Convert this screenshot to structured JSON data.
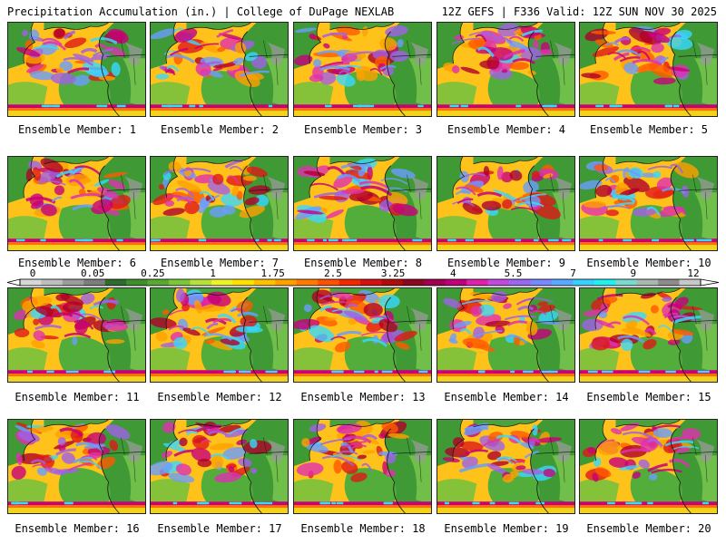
{
  "header": {
    "title": "Precipitation Accumulation (in.) | College of DuPage NEXLAB",
    "valid": "12Z GEFS | F336 Valid: 12Z SUN NOV 30 2025"
  },
  "legend": {
    "ticks": [
      "0",
      "0.05",
      "0.25",
      "1",
      "1.75",
      "2.5",
      "3.25",
      "4",
      "5.5",
      "7",
      "9",
      "12"
    ],
    "colors": [
      "#d7d7d7",
      "#bdbdbd",
      "#9c9c9c",
      "#7d7d7d",
      "#2e6b2e",
      "#3e8e2a",
      "#58a832",
      "#7cc63a",
      "#b7e03c",
      "#eef228",
      "#ffe000",
      "#ffc000",
      "#ffa000",
      "#ff7a00",
      "#ff5200",
      "#f32800",
      "#d41010",
      "#b00a0a",
      "#8c0620",
      "#a00050",
      "#c0007a",
      "#e020a8",
      "#c04ae0",
      "#9a68f0",
      "#7a88ff",
      "#5aa8ff",
      "#38d0ff",
      "#20f0ee",
      "#7ad8d0",
      "#a8b8b0",
      "#8c8c8c",
      "#c8c8c8"
    ]
  },
  "map_palette": [
    "#2e8b2e",
    "#45a83a",
    "#7cc63a",
    "#eef228",
    "#ffd000",
    "#ffa000",
    "#ff5a00",
    "#e01818",
    "#b0002a",
    "#c8007a",
    "#e030b0",
    "#a060e8",
    "#6a9cff",
    "#38d8ff"
  ],
  "panels": [
    {
      "label": "Ensemble Member: 1"
    },
    {
      "label": "Ensemble Member: 2"
    },
    {
      "label": "Ensemble Member: 3"
    },
    {
      "label": "Ensemble Member: 4"
    },
    {
      "label": "Ensemble Member: 5"
    },
    {
      "label": "Ensemble Member: 6"
    },
    {
      "label": "Ensemble Member: 7"
    },
    {
      "label": "Ensemble Member: 8"
    },
    {
      "label": "Ensemble Member: 9"
    },
    {
      "label": "Ensemble Member: 10"
    },
    {
      "label": "Ensemble Member: 11"
    },
    {
      "label": "Ensemble Member: 12"
    },
    {
      "label": "Ensemble Member: 13"
    },
    {
      "label": "Ensemble Member: 14"
    },
    {
      "label": "Ensemble Member: 15"
    },
    {
      "label": "Ensemble Member: 16"
    },
    {
      "label": "Ensemble Member: 17"
    },
    {
      "label": "Ensemble Member: 18"
    },
    {
      "label": "Ensemble Member: 19"
    },
    {
      "label": "Ensemble Member: 20"
    }
  ]
}
